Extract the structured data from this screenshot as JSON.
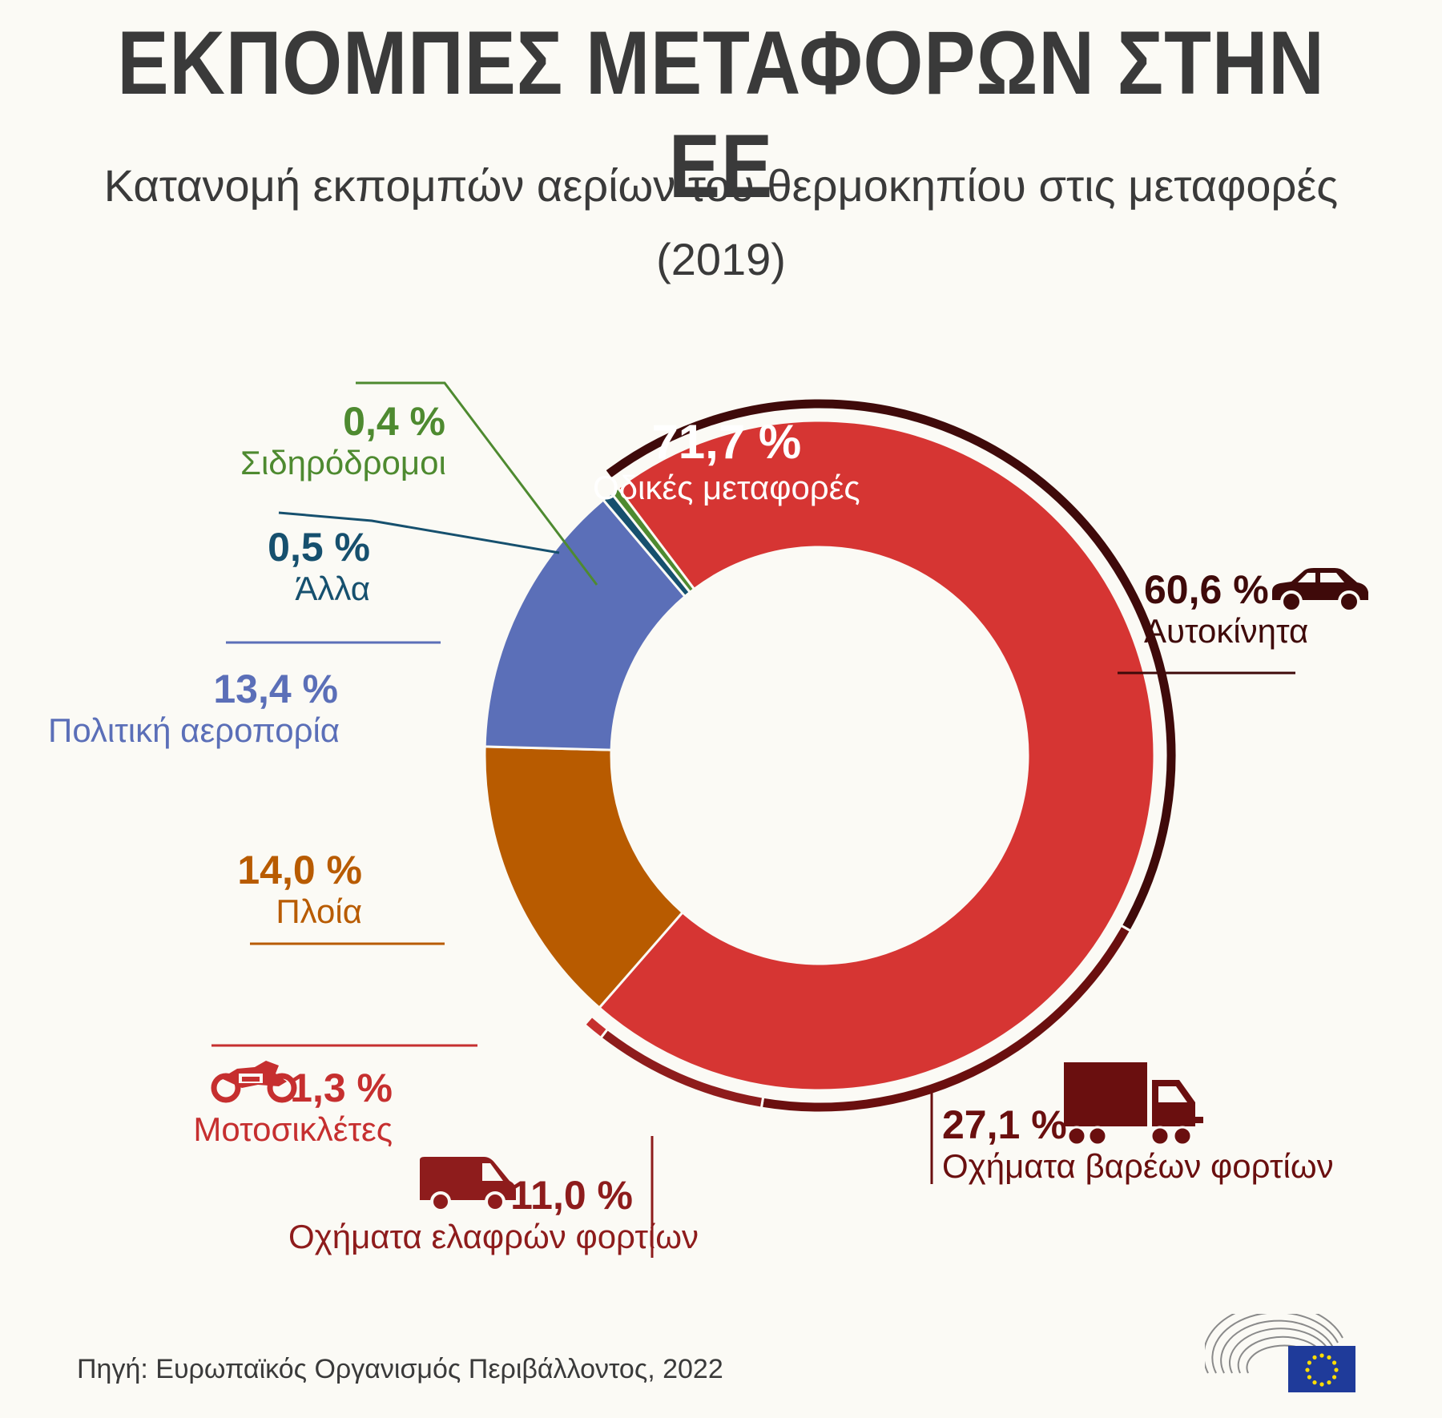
{
  "title": "ΕΚΠΟΜΠΕΣ ΜΕΤΑΦΟΡΩΝ ΣΤΗΝ ΕΕ",
  "subtitle_line1": "Κατανομή εκπομπών αερίων του θερμοκηπίου στις μεταφορές",
  "subtitle_line2": "(2019)",
  "source": "Πηγή: Ευρωπαϊκός Οργανισμός Περιβάλλοντος, 2022",
  "chart_data": {
    "type": "pie",
    "title": "Κατανομή εκπομπών αερίων του θερμοκηπίου στις μεταφορές (2019)",
    "unit": "%",
    "slices": [
      {
        "label": "Οδικές μεταφορές",
        "display": "71,7 %",
        "value": 71.7,
        "color": "#d63533"
      },
      {
        "label": "Πλοία",
        "display": "14,0 %",
        "value": 14.0,
        "color": "#b85b00"
      },
      {
        "label": "Πολιτική αεροπορία",
        "display": "13,4 %",
        "value": 13.4,
        "color": "#5b6fb8"
      },
      {
        "label": "Άλλα",
        "display": "0,5 %",
        "value": 0.5,
        "color": "#16506e"
      },
      {
        "label": "Σιδηρόδρομοι",
        "display": "0,4 %",
        "value": 0.4,
        "color": "#4e8a30"
      }
    ],
    "road_breakdown": [
      {
        "label": "Αυτοκίνητα",
        "display": "60,6 %",
        "value": 60.6,
        "color": "#3f0a0a",
        "icon": "car-icon"
      },
      {
        "label": "Οχήματα βαρέων φορτίων",
        "display": "27,1 %",
        "value": 27.1,
        "color": "#6a0f0f",
        "icon": "truck-icon"
      },
      {
        "label": "Οχήματα ελαφρών φορτίων",
        "display": "11,0 %",
        "value": 11.0,
        "color": "#8e1c1c",
        "icon": "van-icon"
      },
      {
        "label": "Μοτοσικλέτες",
        "display": "1,3 %",
        "value": 1.3,
        "color": "#c62f2f",
        "icon": "motorcycle-icon"
      }
    ]
  }
}
